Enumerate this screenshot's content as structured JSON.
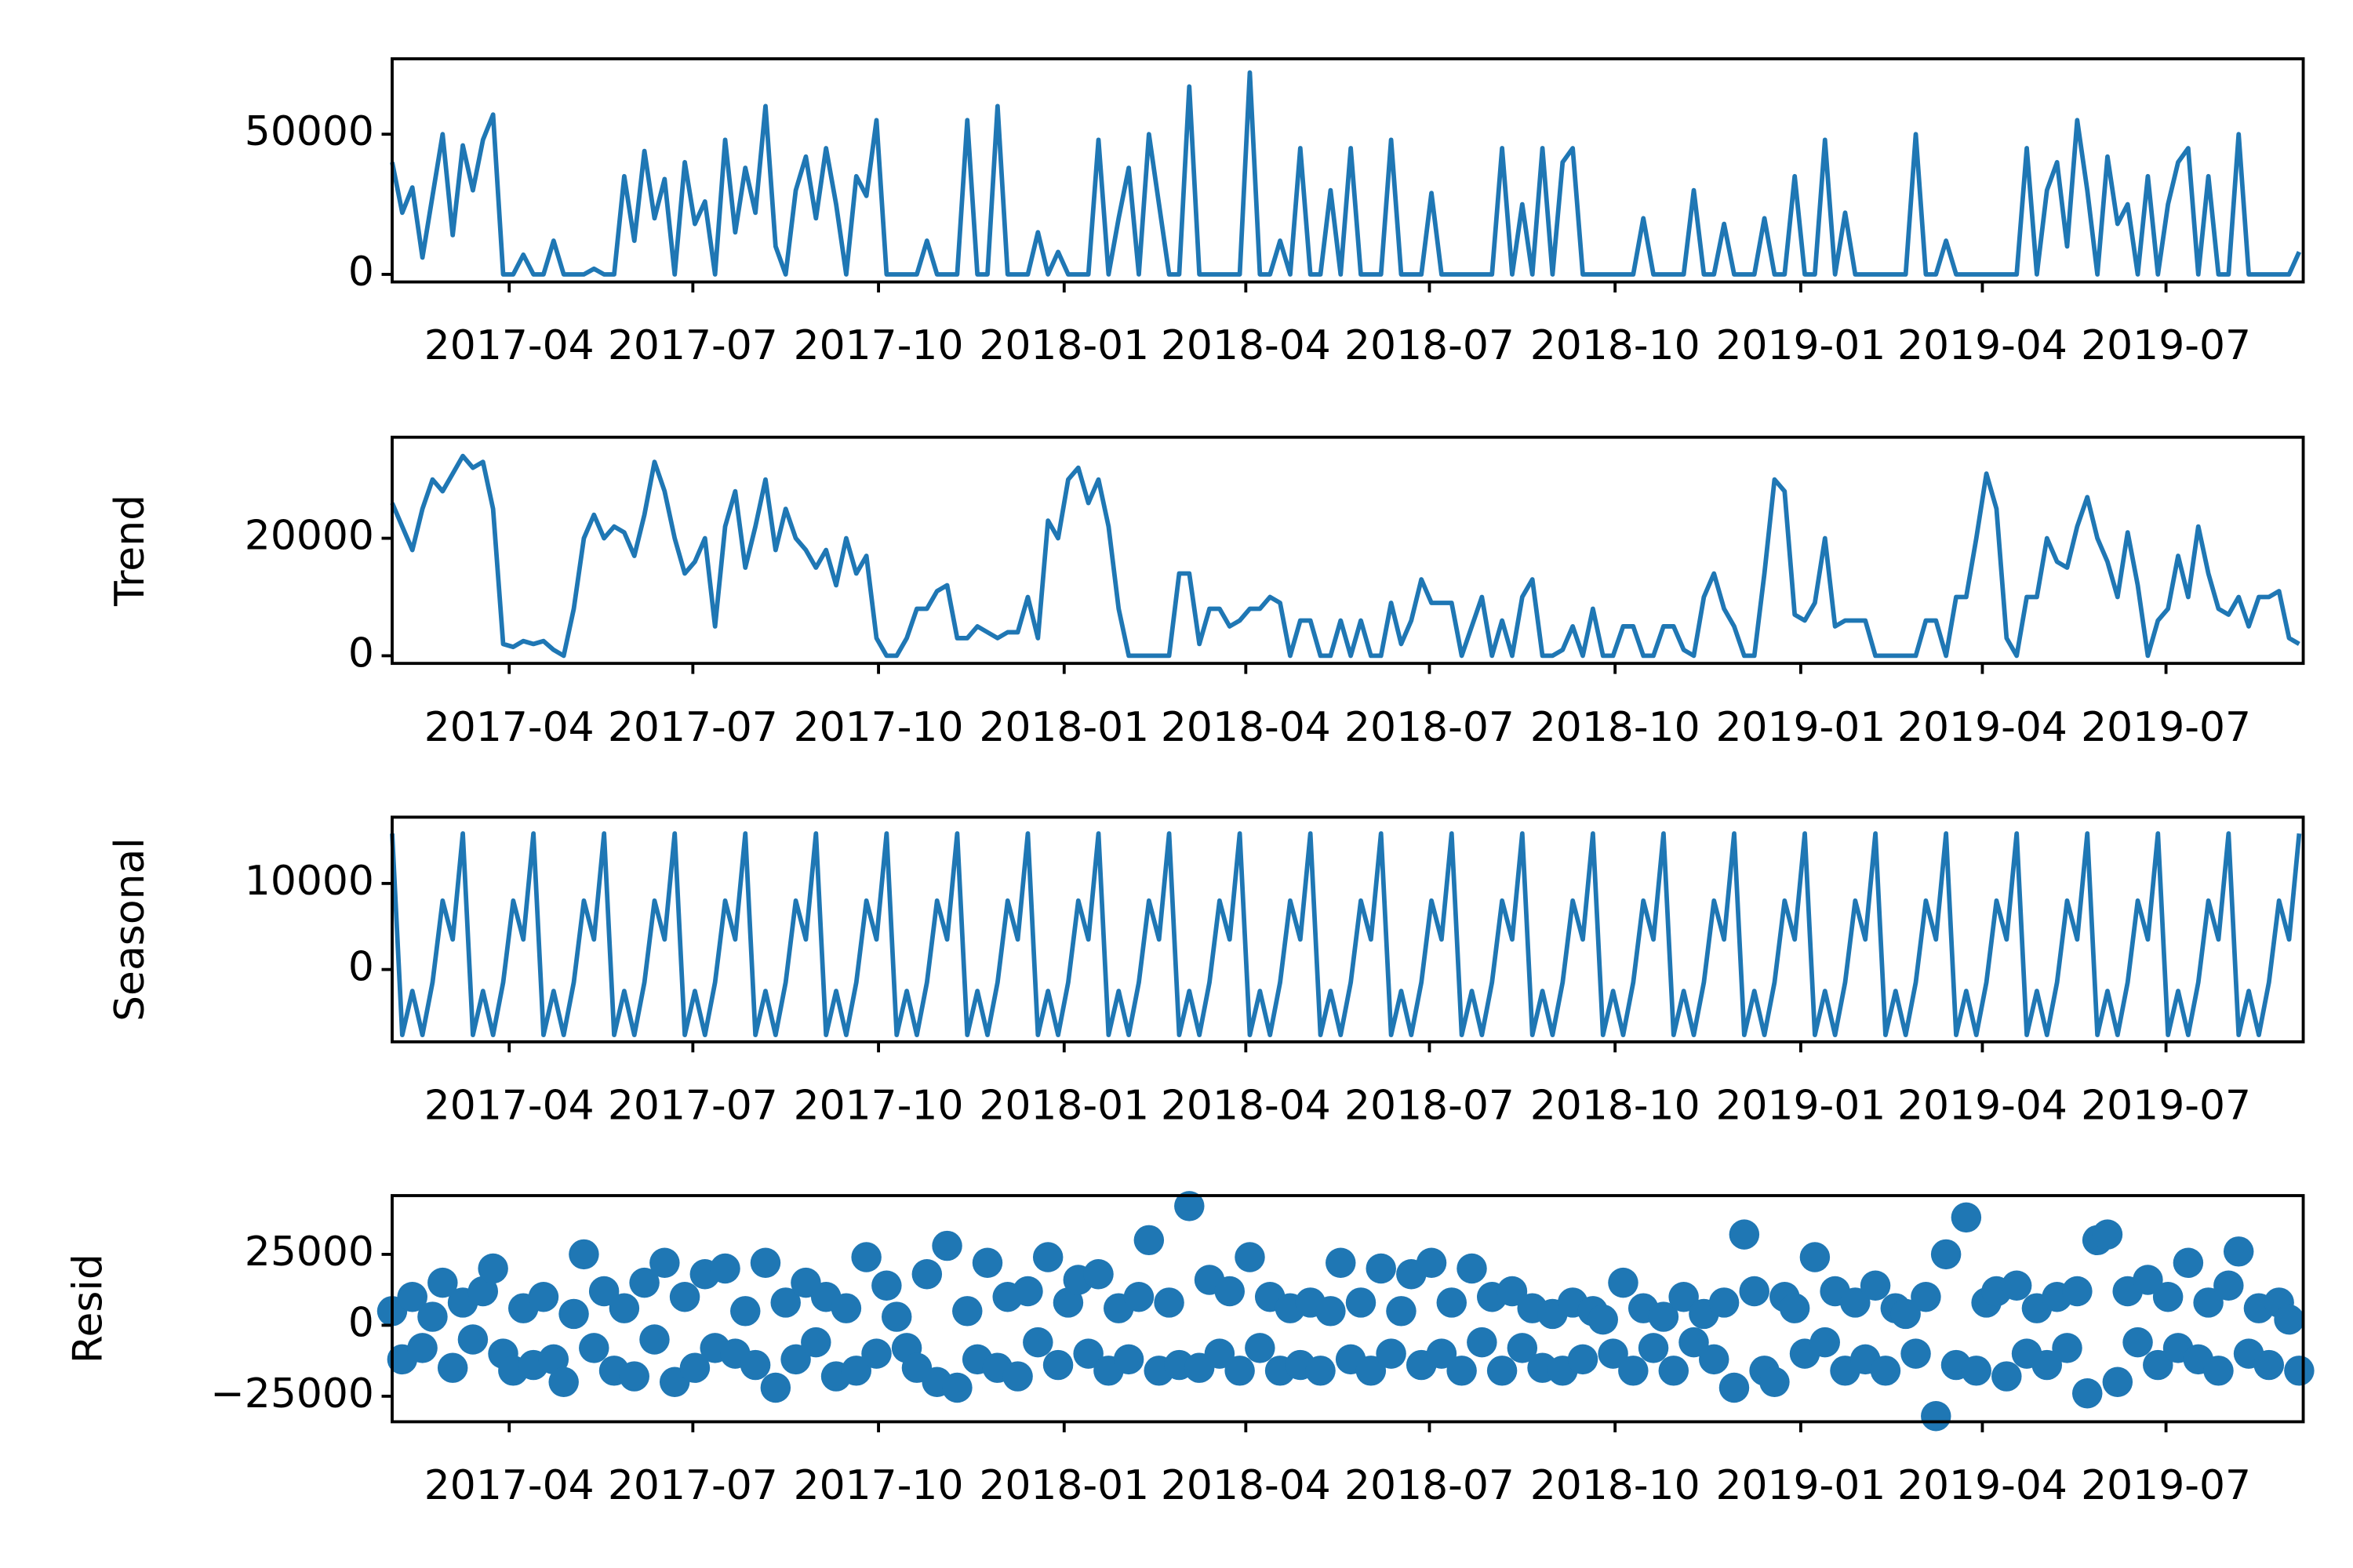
{
  "chart_data": {
    "type": "decomposition",
    "x": [
      32,
      37,
      42,
      47,
      52,
      57,
      62,
      67,
      72,
      77,
      82,
      87,
      92,
      97,
      102,
      107,
      112,
      117,
      122,
      127,
      132,
      137,
      142,
      147,
      152,
      157,
      162,
      167,
      172,
      177,
      182,
      187,
      192,
      197,
      202,
      207,
      212,
      217,
      222,
      227,
      232,
      237,
      242,
      247,
      252,
      257,
      262,
      267,
      272,
      277,
      282,
      287,
      292,
      297,
      302,
      307,
      312,
      317,
      322,
      327,
      332,
      337,
      342,
      347,
      352,
      357,
      362,
      367,
      372,
      377,
      382,
      387,
      392,
      397,
      402,
      407,
      412,
      417,
      422,
      427,
      432,
      437,
      442,
      447,
      452,
      457,
      462,
      467,
      472,
      477,
      482,
      487,
      492,
      497,
      502,
      507,
      512,
      517,
      522,
      527,
      532,
      537,
      542,
      547,
      552,
      557,
      562,
      567,
      572,
      577,
      582,
      587,
      592,
      597,
      602,
      607,
      612,
      617,
      622,
      627,
      632,
      637,
      642,
      647,
      652,
      657,
      662,
      667,
      672,
      677,
      682,
      687,
      692,
      697,
      702,
      707,
      712,
      717,
      722,
      727,
      732,
      737,
      742,
      747,
      752,
      757,
      762,
      767,
      772,
      777,
      782,
      787,
      792,
      797,
      802,
      807,
      812,
      817,
      822,
      827,
      832,
      837,
      842,
      847,
      852,
      857,
      862,
      867,
      872,
      877,
      882,
      887,
      892,
      897,
      902,
      907,
      912,
      917,
      922,
      927,
      932,
      937,
      942,
      947,
      952,
      957,
      962,
      967,
      972,
      977
    ],
    "xlim": [
      32,
      979
    ],
    "xticks": [
      {
        "value": 90,
        "label": "2017-04"
      },
      {
        "value": 181,
        "label": "2017-07"
      },
      {
        "value": 273,
        "label": "2017-10"
      },
      {
        "value": 365,
        "label": "2018-01"
      },
      {
        "value": 455,
        "label": "2018-04"
      },
      {
        "value": 546,
        "label": "2018-07"
      },
      {
        "value": 638,
        "label": "2018-10"
      },
      {
        "value": 730,
        "label": "2019-01"
      },
      {
        "value": 820,
        "label": "2019-04"
      },
      {
        "value": 911,
        "label": "2019-07"
      }
    ],
    "series": [
      {
        "type": "line",
        "color": "#1f77b4",
        "ylim": [
          -2700,
          76900
        ],
        "yticks": [
          0,
          50000
        ],
        "values": [
          40000,
          22000,
          31000,
          6000,
          28000,
          50000,
          14000,
          46000,
          30000,
          48000,
          57000,
          0,
          0,
          7000,
          0,
          0,
          12000,
          0,
          0,
          0,
          2000,
          0,
          0,
          35000,
          12000,
          44000,
          20000,
          34000,
          0,
          40000,
          18000,
          26000,
          0,
          48000,
          15000,
          38000,
          22000,
          60000,
          10000,
          0,
          30000,
          42000,
          20000,
          45000,
          25000,
          0,
          35000,
          28000,
          55000,
          0,
          0,
          0,
          0,
          12000,
          0,
          0,
          0,
          55000,
          0,
          0,
          60000,
          0,
          0,
          0,
          15000,
          0,
          8000,
          0,
          0,
          0,
          48000,
          0,
          20000,
          38000,
          0,
          50000,
          25000,
          0,
          0,
          67000,
          0,
          0,
          0,
          0,
          0,
          72000,
          0,
          0,
          12000,
          0,
          45000,
          0,
          0,
          30000,
          0,
          45000,
          0,
          0,
          0,
          48000,
          0,
          0,
          0,
          29000,
          0,
          0,
          0,
          0,
          0,
          0,
          45000,
          0,
          25000,
          0,
          45000,
          0,
          40000,
          45000,
          0,
          0,
          0,
          0,
          0,
          0,
          20000,
          0,
          0,
          0,
          0,
          30000,
          0,
          0,
          18000,
          0,
          0,
          0,
          20000,
          0,
          0,
          35000,
          0,
          0,
          48000,
          0,
          22000,
          0,
          0,
          0,
          0,
          0,
          0,
          50000,
          0,
          0,
          12000,
          0,
          0,
          0,
          0,
          0,
          0,
          0,
          45000,
          0,
          30000,
          40000,
          10000,
          55000,
          30000,
          0,
          42000,
          18000,
          25000,
          0,
          35000,
          0,
          25000,
          40000,
          45000,
          0,
          35000,
          0,
          0,
          50000,
          0,
          0,
          0,
          0,
          0,
          8000
        ]
      },
      {
        "type": "line",
        "ylabel": "Trend",
        "color": "#1f77b4",
        "ylim": [
          -1300,
          37200
        ],
        "yticks": [
          0,
          20000
        ],
        "values": [
          26000,
          22000,
          18000,
          25000,
          30000,
          28000,
          31000,
          34000,
          32000,
          33000,
          25000,
          2000,
          1500,
          2500,
          2000,
          2500,
          1000,
          0,
          8000,
          20000,
          24000,
          20000,
          22000,
          21000,
          17000,
          24000,
          33000,
          28000,
          20000,
          14000,
          16000,
          20000,
          5000,
          22000,
          28000,
          15000,
          22000,
          30000,
          18000,
          25000,
          20000,
          18000,
          15000,
          18000,
          12000,
          20000,
          14000,
          17000,
          3000,
          0,
          0,
          3000,
          8000,
          8000,
          11000,
          12000,
          3000,
          3000,
          5000,
          4000,
          3000,
          4000,
          4000,
          10000,
          3000,
          23000,
          20000,
          30000,
          32000,
          26000,
          30000,
          22000,
          8000,
          0,
          0,
          0,
          0,
          0,
          14000,
          14000,
          2000,
          8000,
          8000,
          5000,
          6000,
          8000,
          8000,
          10000,
          9000,
          0,
          6000,
          6000,
          0,
          0,
          6000,
          0,
          6000,
          0,
          0,
          9000,
          2000,
          6000,
          13000,
          9000,
          9000,
          9000,
          0,
          5000,
          10000,
          0,
          6000,
          0,
          10000,
          13000,
          0,
          0,
          1000,
          5000,
          0,
          8000,
          0,
          0,
          5000,
          5000,
          0,
          0,
          5000,
          5000,
          1000,
          0,
          10000,
          14000,
          8000,
          5000,
          0,
          0,
          14000,
          30000,
          28000,
          7000,
          6000,
          9000,
          20000,
          5000,
          6000,
          6000,
          6000,
          0,
          0,
          0,
          0,
          0,
          6000,
          6000,
          0,
          10000,
          10000,
          20000,
          31000,
          25000,
          3000,
          0,
          10000,
          10000,
          20000,
          16000,
          15000,
          22000,
          27000,
          20000,
          16000,
          10000,
          21000,
          12000,
          0,
          6000,
          8000,
          17000,
          10000,
          22000,
          14000,
          8000,
          7000,
          10000,
          5000,
          10000,
          10000,
          11000,
          3000,
          2000
        ]
      },
      {
        "type": "line",
        "ylabel": "Seasonal",
        "color": "#1f77b4",
        "ylim": [
          -8400,
          17700
        ],
        "yticks": [
          0,
          10000
        ],
        "values": [
          15800,
          -7600,
          -2500,
          -7600,
          -1500,
          8000,
          3500,
          15800,
          -7600,
          -2500,
          -7600,
          -1500,
          8000,
          3500,
          15800,
          -7600,
          -2500,
          -7600,
          -1500,
          8000,
          3500,
          15800,
          -7600,
          -2500,
          -7600,
          -1500,
          8000,
          3500,
          15800,
          -7600,
          -2500,
          -7600,
          -1500,
          8000,
          3500,
          15800,
          -7600,
          -2500,
          -7600,
          -1500,
          8000,
          3500,
          15800,
          -7600,
          -2500,
          -7600,
          -1500,
          8000,
          3500,
          15800,
          -7600,
          -2500,
          -7600,
          -1500,
          8000,
          3500,
          15800,
          -7600,
          -2500,
          -7600,
          -1500,
          8000,
          3500,
          15800,
          -7600,
          -2500,
          -7600,
          -1500,
          8000,
          3500,
          15800,
          -7600,
          -2500,
          -7600,
          -1500,
          8000,
          3500,
          15800,
          -7600,
          -2500,
          -7600,
          -1500,
          8000,
          3500,
          15800,
          -7600,
          -2500,
          -7600,
          -1500,
          8000,
          3500,
          15800,
          -7600,
          -2500,
          -7600,
          -1500,
          8000,
          3500,
          15800,
          -7600,
          -2500,
          -7600,
          -1500,
          8000,
          3500,
          15800,
          -7600,
          -2500,
          -7600,
          -1500,
          8000,
          3500,
          15800,
          -7600,
          -2500,
          -7600,
          -1500,
          8000,
          3500,
          15800,
          -7600,
          -2500,
          -7600,
          -1500,
          8000,
          3500,
          15800,
          -7600,
          -2500,
          -7600,
          -1500,
          8000,
          3500,
          15800,
          -7600,
          -2500,
          -7600,
          -1500,
          8000,
          3500,
          15800,
          -7600,
          -2500,
          -7600,
          -1500,
          8000,
          3500,
          15800,
          -7600,
          -2500,
          -7600,
          -1500,
          8000,
          3500,
          15800,
          -7600,
          -2500,
          -7600,
          -1500,
          8000,
          3500,
          15800,
          -7600,
          -2500,
          -7600,
          -1500,
          8000,
          3500,
          15800,
          -7600,
          -2500,
          -7600,
          -1500,
          8000,
          3500,
          15800,
          -7600,
          -2500,
          -7600,
          -1500,
          8000,
          3500,
          15800,
          -7600,
          -2500,
          -7600,
          -1500,
          8000,
          3500,
          15800
        ]
      },
      {
        "type": "scatter",
        "ylabel": "Resid",
        "color": "#1f77b4",
        "ylim": [
          -34000,
          45700
        ],
        "yticks": [
          {
            "value": -25000,
            "label": "−25000"
          },
          0,
          25000
        ],
        "values": [
          5000,
          -12000,
          10000,
          -8000,
          3000,
          15000,
          -15000,
          8000,
          -5000,
          12000,
          20000,
          -10000,
          -16000,
          6000,
          -14000,
          10000,
          -12000,
          -20000,
          4000,
          25000,
          -8000,
          12000,
          -16000,
          6000,
          -18000,
          15000,
          -5000,
          22000,
          -20000,
          10000,
          -15000,
          18000,
          -8000,
          20000,
          -10000,
          5000,
          -14000,
          22000,
          -22000,
          8000,
          -12000,
          15000,
          -6000,
          10000,
          -18000,
          6000,
          -16000,
          24000,
          -10000,
          14000,
          3000,
          -8000,
          -15000,
          18000,
          -20000,
          28000,
          -22000,
          5000,
          -12000,
          22000,
          -15000,
          10000,
          -18000,
          12000,
          -6000,
          24000,
          -14000,
          8000,
          16000,
          -10000,
          18000,
          -16000,
          6000,
          -12000,
          10000,
          30000,
          -16000,
          8000,
          -14000,
          42000,
          -15000,
          16000,
          -10000,
          12000,
          -16000,
          24000,
          -8000,
          10000,
          -16000,
          6000,
          -14000,
          8000,
          -16000,
          5000,
          22000,
          -12000,
          8000,
          -16000,
          20000,
          -10000,
          5000,
          18000,
          -14000,
          22000,
          -10000,
          8000,
          -16000,
          20000,
          -6000,
          10000,
          -16000,
          12000,
          -8000,
          6000,
          -15000,
          4000,
          -16000,
          8000,
          -12000,
          5000,
          2000,
          -10000,
          15000,
          -16000,
          6000,
          -8000,
          3000,
          -16000,
          10000,
          -6000,
          4000,
          -12000,
          8000,
          -22000,
          32000,
          12000,
          -16000,
          -20000,
          10000,
          6000,
          -10000,
          24000,
          -6000,
          12000,
          -16000,
          8000,
          -12000,
          14000,
          -16000,
          6000,
          4000,
          -10000,
          10000,
          -32000,
          25000,
          -14000,
          38000,
          -16000,
          8000,
          12000,
          -18000,
          14000,
          -10000,
          6000,
          -14000,
          10000,
          -8000,
          12000,
          -24000,
          30000,
          32000,
          -20000,
          12000,
          -6000,
          16000,
          -14000,
          10000,
          -8000,
          22000,
          -12000,
          8000,
          -16000,
          14000,
          26000,
          -10000,
          6000,
          -14000,
          8000,
          2000,
          -16000
        ]
      }
    ]
  }
}
